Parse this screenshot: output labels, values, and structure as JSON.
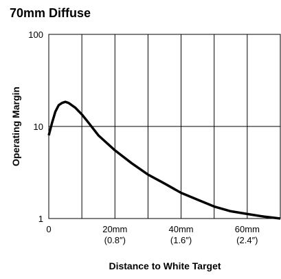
{
  "chart_data": {
    "type": "line",
    "title": "70mm Diffuse",
    "xlabel": "Distance to White Target",
    "ylabel": "Operating Margin",
    "x": [
      0,
      1,
      2,
      3,
      4,
      5,
      6,
      8,
      10,
      12,
      15,
      20,
      25,
      30,
      35,
      40,
      45,
      50,
      55,
      60,
      65,
      70
    ],
    "series": [
      {
        "name": "70mm Diffuse",
        "color": "#000000",
        "values": [
          8,
          11,
          14.5,
          17,
          18,
          18.5,
          18,
          16,
          13.5,
          11,
          8,
          5.5,
          4,
          3,
          2.4,
          1.9,
          1.6,
          1.35,
          1.2,
          1.12,
          1.05,
          1.0
        ]
      }
    ],
    "xlim": [
      0,
      70
    ],
    "ylim": [
      1,
      100
    ],
    "log_y": true,
    "xticks": [
      0,
      {
        "value": 20,
        "label": "20mm\n(0.8″)"
      },
      {
        "value": 40,
        "label": "40mm\n(1.6″)"
      },
      {
        "value": 60,
        "label": "60mm\n(2.4″)"
      }
    ],
    "xgrid": [
      10,
      20,
      30,
      40,
      50,
      60
    ],
    "yticks": [
      1,
      10,
      100
    ],
    "grid": true
  }
}
